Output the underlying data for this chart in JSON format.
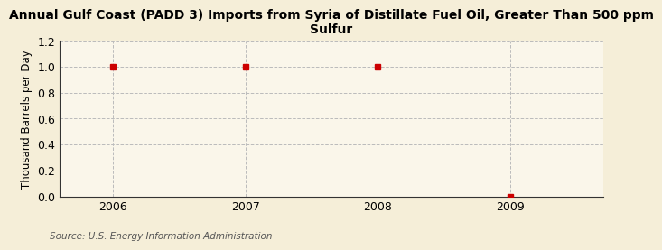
{
  "title": "Annual Gulf Coast (PADD 3) Imports from Syria of Distillate Fuel Oil, Greater Than 500 ppm\nSulfur",
  "ylabel": "Thousand Barrels per Day",
  "source": "Source: U.S. Energy Information Administration",
  "x_values": [
    2006,
    2007,
    2008,
    2009
  ],
  "y_values": [
    1.0,
    1.0,
    1.0,
    0.0
  ],
  "xlim": [
    2005.6,
    2009.7
  ],
  "ylim": [
    0.0,
    1.2
  ],
  "yticks": [
    0.0,
    0.2,
    0.4,
    0.6,
    0.8,
    1.0,
    1.2
  ],
  "xticks": [
    2006,
    2007,
    2008,
    2009
  ],
  "background_color": "#f5eed8",
  "plot_bg_color": "#faf6ea",
  "marker_color": "#cc0000",
  "marker_size": 4,
  "grid_color": "#bbbbbb",
  "grid_style": "--",
  "title_fontsize": 10,
  "axis_label_fontsize": 8.5,
  "tick_fontsize": 9,
  "source_fontsize": 7.5
}
